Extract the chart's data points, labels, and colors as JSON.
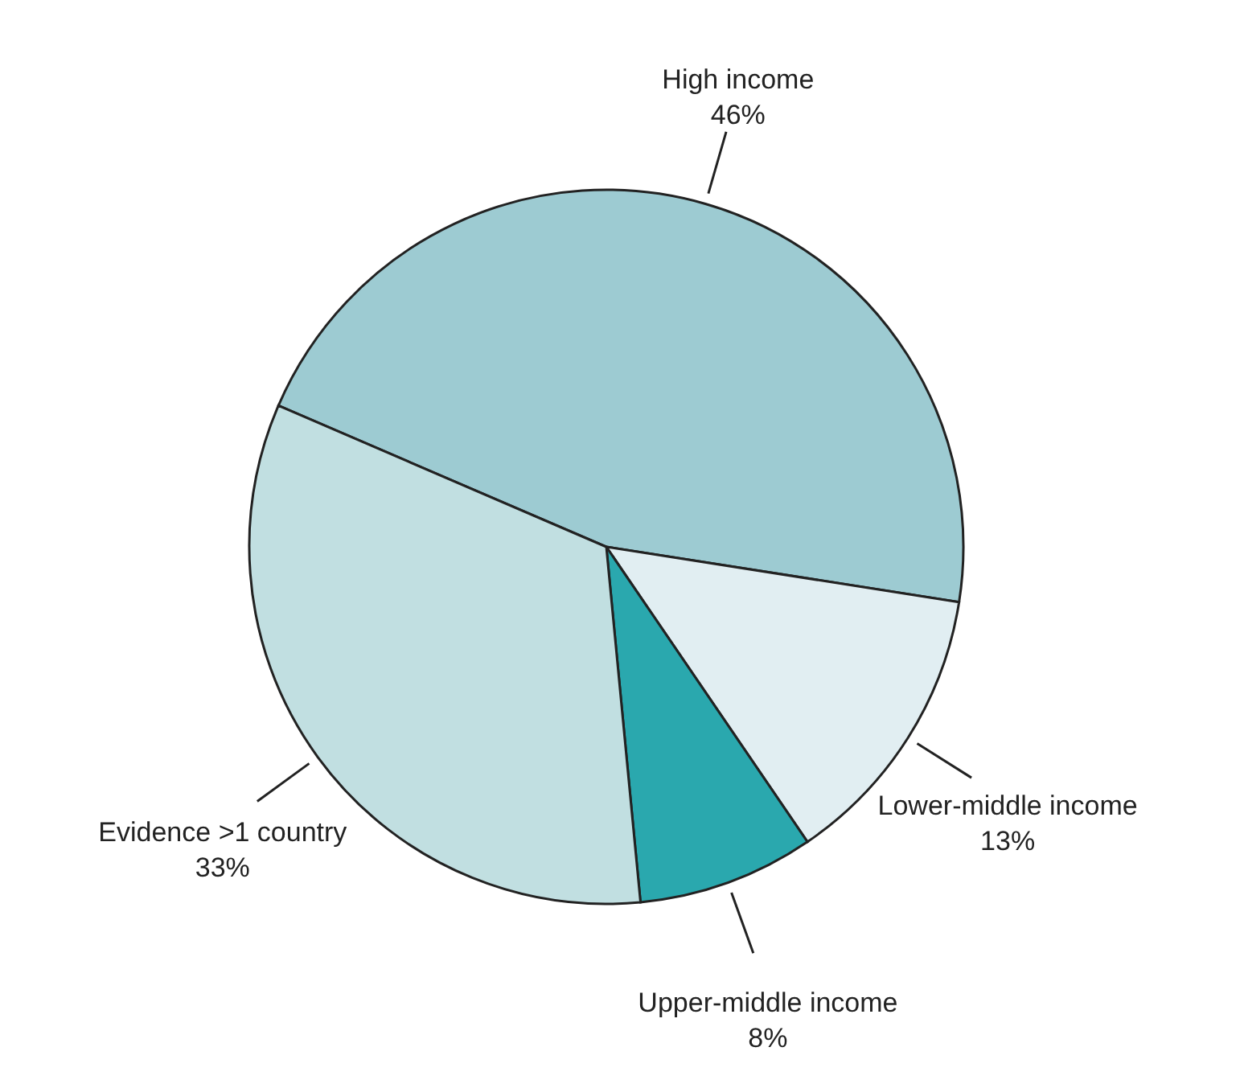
{
  "chart_data": {
    "type": "pie",
    "categories": [
      "High income",
      "Lower-middle income",
      "Upper-middle income",
      "Evidence >1 country"
    ],
    "values": [
      46,
      13,
      8,
      33
    ],
    "colors": [
      "#9dcbd2",
      "#e1eef2",
      "#2aa8ae",
      "#c1dfe1"
    ],
    "data_labels": true,
    "value_labels": [
      "46%",
      "13%",
      "8%",
      "33%"
    ]
  }
}
